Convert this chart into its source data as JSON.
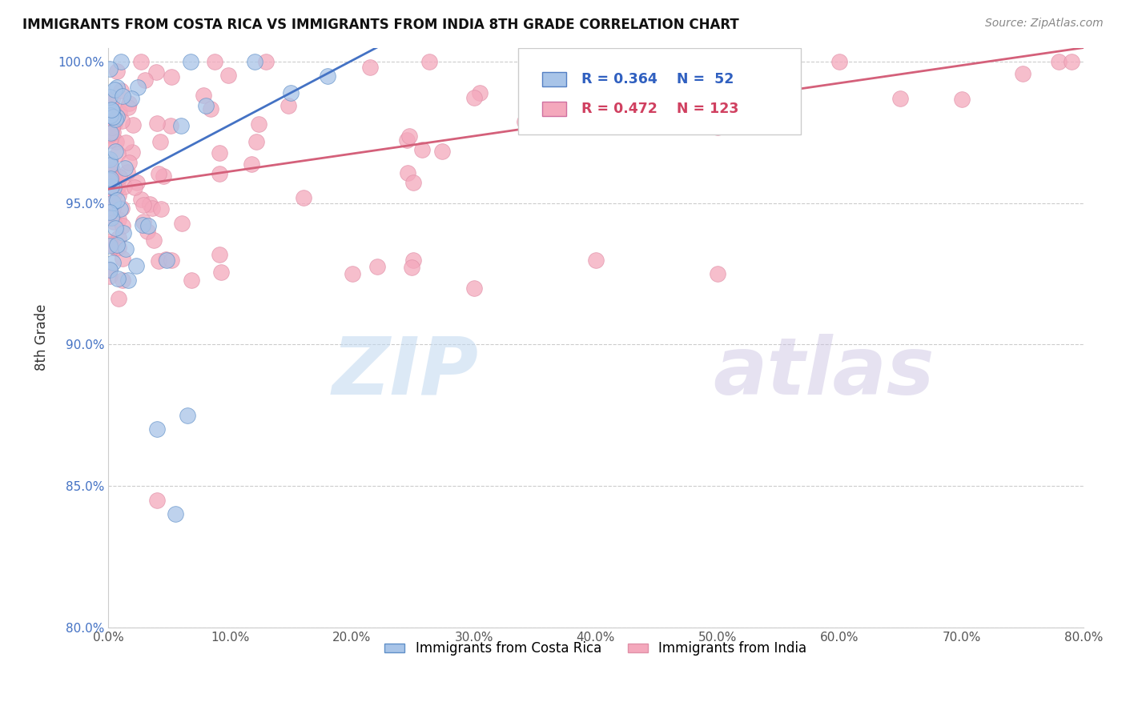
{
  "title": "IMMIGRANTS FROM COSTA RICA VS IMMIGRANTS FROM INDIA 8TH GRADE CORRELATION CHART",
  "source": "Source: ZipAtlas.com",
  "ylabel": "8th Grade",
  "legend_label_1": "Immigrants from Costa Rica",
  "legend_label_2": "Immigrants from India",
  "r1": 0.364,
  "n1": 52,
  "r2": 0.472,
  "n2": 123,
  "color1": "#A8C4E8",
  "color2": "#F4A8BC",
  "trendline1_color": "#4472C4",
  "trendline2_color": "#D4607A",
  "xlim": [
    0.0,
    0.8
  ],
  "ylim": [
    0.8,
    1.005
  ],
  "xticks": [
    0.0,
    0.1,
    0.2,
    0.3,
    0.4,
    0.5,
    0.6,
    0.7,
    0.8
  ],
  "yticks": [
    0.8,
    0.85,
    0.9,
    0.95,
    1.0
  ],
  "xtick_labels": [
    "0.0%",
    "10.0%",
    "20.0%",
    "30.0%",
    "40.0%",
    "50.0%",
    "60.0%",
    "70.0%",
    "80.0%"
  ],
  "ytick_labels": [
    "80.0%",
    "85.0%",
    "90.0%",
    "95.0%",
    "100.0%"
  ],
  "trendline1_x0": 0.0,
  "trendline1_y0": 0.955,
  "trendline1_x1": 0.22,
  "trendline1_y1": 1.005,
  "trendline2_x0": 0.0,
  "trendline2_y0": 0.955,
  "trendline2_x1": 0.8,
  "trendline2_y1": 1.005,
  "watermark_zip_color": "#C8DCF0",
  "watermark_atlas_color": "#D0C8E8"
}
